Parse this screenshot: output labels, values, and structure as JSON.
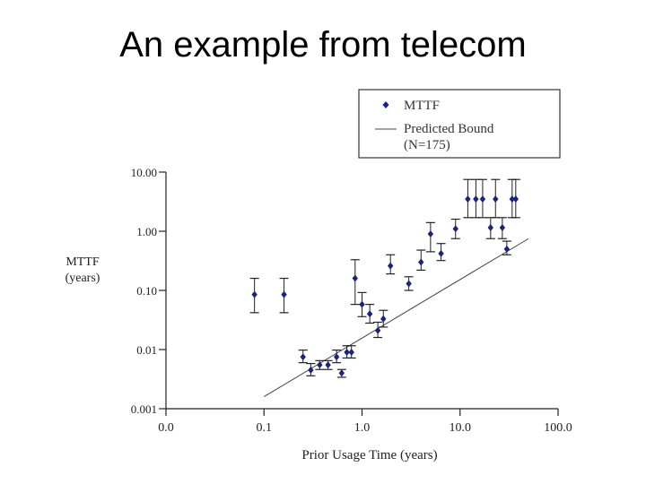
{
  "slide": {
    "title": "An example from telecom"
  },
  "chart_data": {
    "type": "scatter",
    "title": "",
    "xlabel": "Prior Usage Time (years)",
    "ylabel": "MTTF",
    "ylabel_unit": "(years)",
    "x_scale": "log",
    "y_scale": "log",
    "xlim": [
      0.01,
      100
    ],
    "ylim": [
      0.001,
      10
    ],
    "x_ticks": [
      0.01,
      0.1,
      1,
      10,
      100
    ],
    "x_tick_labels": [
      "0.0",
      "0.1",
      "1.0",
      "10.0",
      "100.0"
    ],
    "y_ticks": [
      0.001,
      0.01,
      0.1,
      1,
      10
    ],
    "y_tick_labels": [
      "0.001",
      "0.01",
      "0.10",
      "1.00",
      "10.00"
    ],
    "grid": false,
    "legend": {
      "placement": "top-right",
      "entries": [
        {
          "label": "MTTF",
          "marker": "diamond"
        },
        {
          "label": "Predicted Bound",
          "label2": "(N=175)",
          "marker": "line"
        }
      ]
    },
    "series": [
      {
        "name": "MTTF",
        "color": "#1a237e",
        "points": [
          {
            "x": 0.08,
            "y": 0.085,
            "lo": 0.042,
            "hi": 0.16
          },
          {
            "x": 0.16,
            "y": 0.085,
            "lo": 0.042,
            "hi": 0.16
          },
          {
            "x": 0.25,
            "y": 0.0075,
            "lo": 0.006,
            "hi": 0.0098
          },
          {
            "x": 0.3,
            "y": 0.0045,
            "lo": 0.0036,
            "hi": 0.0058
          },
          {
            "x": 0.37,
            "y": 0.0055,
            "lo": 0.0046,
            "hi": 0.0065
          },
          {
            "x": 0.45,
            "y": 0.0055,
            "lo": 0.0046,
            "hi": 0.0065
          },
          {
            "x": 0.55,
            "y": 0.0075,
            "lo": 0.006,
            "hi": 0.0098
          },
          {
            "x": 0.62,
            "y": 0.004,
            "lo": 0.0034,
            "hi": 0.0046
          },
          {
            "x": 0.7,
            "y": 0.009,
            "lo": 0.0072,
            "hi": 0.0116
          },
          {
            "x": 0.78,
            "y": 0.009,
            "lo": 0.0072,
            "hi": 0.0116
          },
          {
            "x": 0.85,
            "y": 0.16,
            "lo": 0.058,
            "hi": 0.33
          },
          {
            "x": 1.0,
            "y": 0.058,
            "lo": 0.036,
            "hi": 0.092
          },
          {
            "x": 1.2,
            "y": 0.04,
            "lo": 0.028,
            "hi": 0.058
          },
          {
            "x": 1.45,
            "y": 0.021,
            "lo": 0.016,
            "hi": 0.029
          },
          {
            "x": 1.65,
            "y": 0.033,
            "lo": 0.024,
            "hi": 0.046
          },
          {
            "x": 1.95,
            "y": 0.26,
            "lo": 0.19,
            "hi": 0.4
          },
          {
            "x": 3.0,
            "y": 0.13,
            "lo": 0.1,
            "hi": 0.17
          },
          {
            "x": 4.0,
            "y": 0.3,
            "lo": 0.22,
            "hi": 0.48
          },
          {
            "x": 5.0,
            "y": 0.9,
            "lo": 0.45,
            "hi": 1.4
          },
          {
            "x": 6.4,
            "y": 0.42,
            "lo": 0.32,
            "hi": 0.62
          },
          {
            "x": 9.0,
            "y": 1.1,
            "lo": 0.75,
            "hi": 1.6
          },
          {
            "x": 12.0,
            "y": 3.5,
            "lo": 1.7,
            "hi": 7.5
          },
          {
            "x": 14.5,
            "y": 3.5,
            "lo": 1.7,
            "hi": 7.5
          },
          {
            "x": 17.0,
            "y": 3.5,
            "lo": 1.7,
            "hi": 7.5
          },
          {
            "x": 20.5,
            "y": 1.15,
            "lo": 0.75,
            "hi": 1.7
          },
          {
            "x": 23.0,
            "y": 3.5,
            "lo": 1.7,
            "hi": 7.5
          },
          {
            "x": 27.0,
            "y": 1.15,
            "lo": 0.75,
            "hi": 1.7
          },
          {
            "x": 30.0,
            "y": 0.5,
            "lo": 0.4,
            "hi": 0.68
          },
          {
            "x": 34.0,
            "y": 3.5,
            "lo": 1.7,
            "hi": 7.5
          },
          {
            "x": 37.0,
            "y": 3.5,
            "lo": 1.7,
            "hi": 7.5
          }
        ]
      },
      {
        "name": "Predicted Bound (N=175)",
        "color": "#333333",
        "line": [
          {
            "x": 0.1,
            "y": 0.0016
          },
          {
            "x": 50,
            "y": 0.75
          }
        ]
      }
    ]
  }
}
